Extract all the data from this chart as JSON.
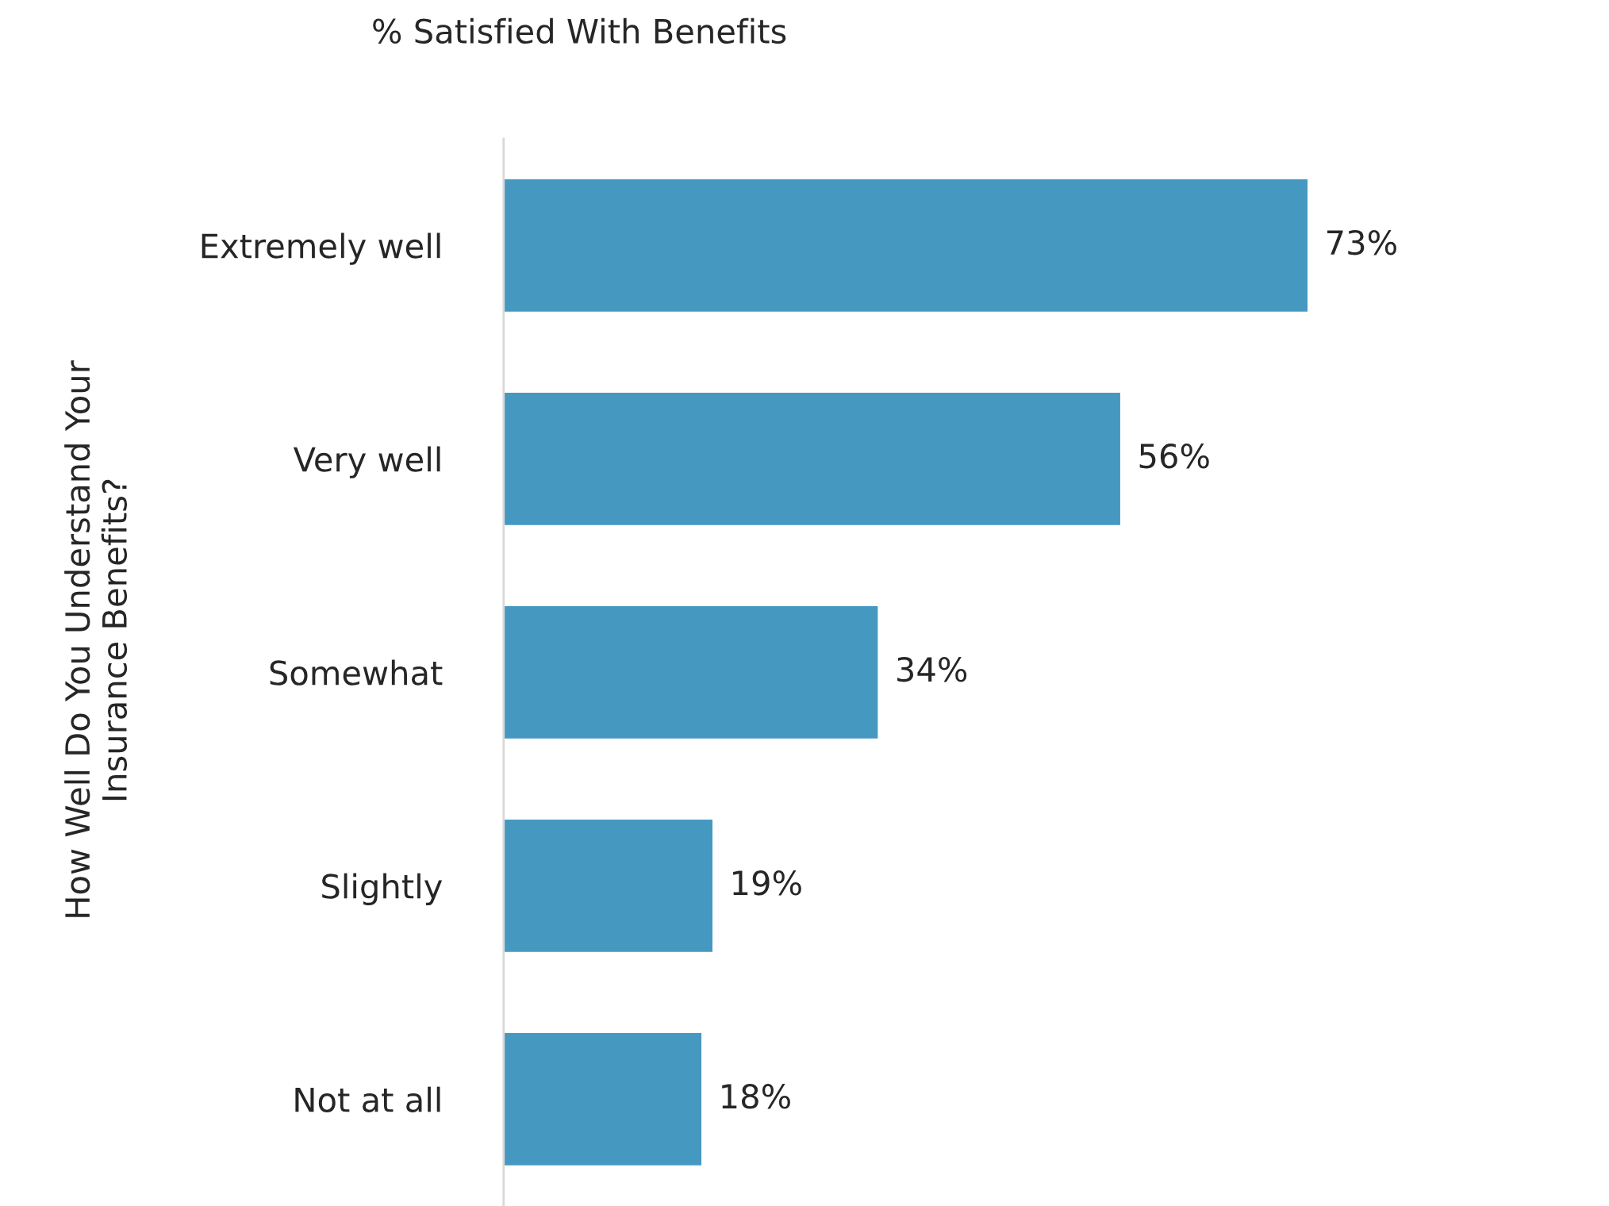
{
  "chart_data": {
    "type": "bar",
    "orientation": "horizontal",
    "title": "% Satisfied With Benefits",
    "ylabel": "How Well Do You Understand Your\nInsurance Benefits?",
    "categories": [
      "Extremely well",
      "Very well",
      "Somewhat",
      "Slightly",
      "Not at all"
    ],
    "values": [
      73,
      56,
      34,
      19,
      18
    ],
    "color": "#4599c0",
    "value_labels": [
      "73%",
      "56%",
      "34%",
      "19%",
      "18%"
    ],
    "grid": false,
    "legend": false
  }
}
